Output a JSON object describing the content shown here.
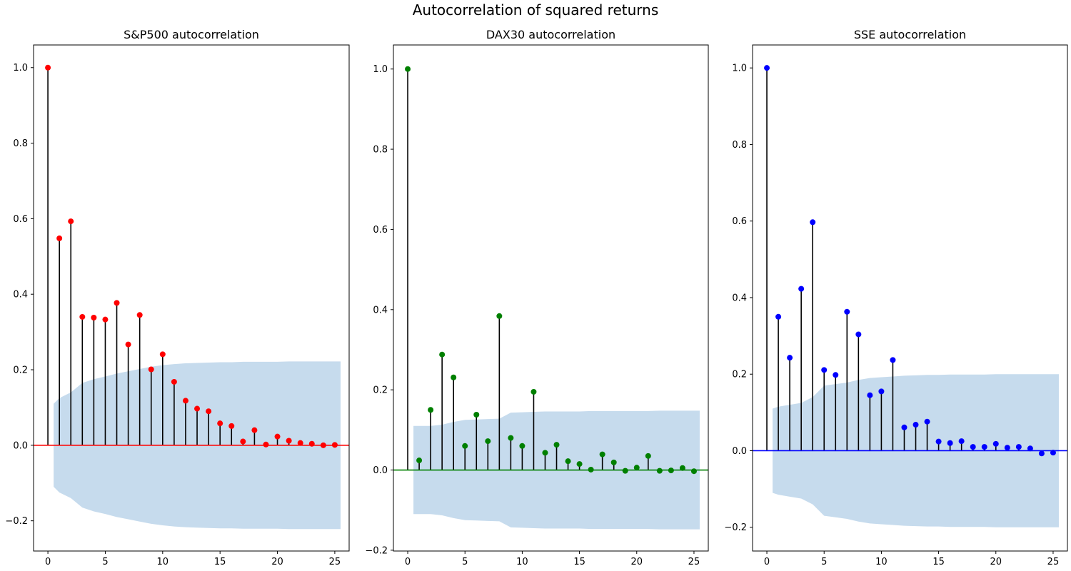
{
  "suptitle": "Autocorrelation of squared returns",
  "chart_data": [
    {
      "type": "stem",
      "title": "S&P500 autocorrelation",
      "color": "#ff0000",
      "band_color": "#c6dbed",
      "lags": [
        0,
        1,
        2,
        3,
        4,
        5,
        6,
        7,
        8,
        9,
        10,
        11,
        12,
        13,
        14,
        15,
        16,
        17,
        18,
        19,
        20,
        21,
        22,
        23,
        24,
        25
      ],
      "values": [
        1.0,
        0.548,
        0.593,
        0.34,
        0.338,
        0.333,
        0.377,
        0.267,
        0.345,
        0.201,
        0.241,
        0.168,
        0.118,
        0.097,
        0.09,
        0.058,
        0.051,
        0.01,
        0.04,
        0.002,
        0.023,
        0.012,
        0.006,
        0.004,
        0.0,
        0.001
      ],
      "conf_band": [
        0.11,
        0.125,
        0.14,
        0.165,
        0.175,
        0.182,
        0.19,
        0.196,
        0.202,
        0.208,
        0.212,
        0.215,
        0.217,
        0.218,
        0.219,
        0.22,
        0.22,
        0.221,
        0.221,
        0.221,
        0.221,
        0.222,
        0.222,
        0.222,
        0.222,
        0.222
      ],
      "ylim": [
        -0.28,
        1.06
      ],
      "xlim": [
        -1.25,
        26.25
      ],
      "yticks": [
        -0.2,
        0.0,
        0.2,
        0.4,
        0.6,
        0.8,
        1.0
      ],
      "xticks": [
        0,
        5,
        10,
        15,
        20,
        25
      ]
    },
    {
      "type": "stem",
      "title": "DAX30 autocorrelation",
      "color": "#008000",
      "band_color": "#c6dbed",
      "lags": [
        0,
        1,
        2,
        3,
        4,
        5,
        6,
        7,
        8,
        9,
        10,
        11,
        12,
        13,
        14,
        15,
        16,
        17,
        18,
        19,
        20,
        21,
        22,
        23,
        24,
        25
      ],
      "values": [
        1.0,
        0.024,
        0.15,
        0.288,
        0.231,
        0.06,
        0.138,
        0.072,
        0.384,
        0.08,
        0.06,
        0.195,
        0.043,
        0.063,
        0.022,
        0.015,
        0.001,
        0.039,
        0.019,
        -0.002,
        0.006,
        0.035,
        -0.002,
        -0.001,
        0.005,
        -0.003
      ],
      "conf_band": [
        0.11,
        0.11,
        0.11,
        0.113,
        0.12,
        0.125,
        0.126,
        0.127,
        0.128,
        0.143,
        0.144,
        0.145,
        0.146,
        0.146,
        0.146,
        0.146,
        0.147,
        0.147,
        0.147,
        0.147,
        0.147,
        0.147,
        0.148,
        0.148,
        0.148,
        0.148
      ],
      "ylim": [
        -0.202,
        1.06
      ],
      "xlim": [
        -1.25,
        26.25
      ],
      "yticks": [
        -0.2,
        0.0,
        0.2,
        0.4,
        0.6,
        0.8,
        1.0
      ],
      "xticks": [
        0,
        5,
        10,
        15,
        20,
        25
      ]
    },
    {
      "type": "stem",
      "title": "SSE autocorrelation",
      "color": "#0000ff",
      "band_color": "#c6dbed",
      "lags": [
        0,
        1,
        2,
        3,
        4,
        5,
        6,
        7,
        8,
        9,
        10,
        11,
        12,
        13,
        14,
        15,
        16,
        17,
        18,
        19,
        20,
        21,
        22,
        23,
        24,
        25
      ],
      "values": [
        1.0,
        0.35,
        0.243,
        0.423,
        0.597,
        0.211,
        0.198,
        0.363,
        0.304,
        0.145,
        0.155,
        0.237,
        0.061,
        0.068,
        0.076,
        0.024,
        0.02,
        0.025,
        0.01,
        0.01,
        0.018,
        0.008,
        0.01,
        0.006,
        -0.007,
        -0.005
      ],
      "conf_band": [
        0.11,
        0.115,
        0.12,
        0.125,
        0.14,
        0.17,
        0.174,
        0.178,
        0.185,
        0.19,
        0.192,
        0.194,
        0.196,
        0.197,
        0.198,
        0.198,
        0.199,
        0.199,
        0.199,
        0.199,
        0.2,
        0.2,
        0.2,
        0.2,
        0.2,
        0.2
      ],
      "ylim": [
        -0.262,
        1.06
      ],
      "xlim": [
        -1.25,
        26.25
      ],
      "yticks": [
        -0.2,
        0.0,
        0.2,
        0.4,
        0.6,
        0.8,
        1.0
      ],
      "xticks": [
        0,
        5,
        10,
        15,
        20,
        25
      ]
    }
  ]
}
